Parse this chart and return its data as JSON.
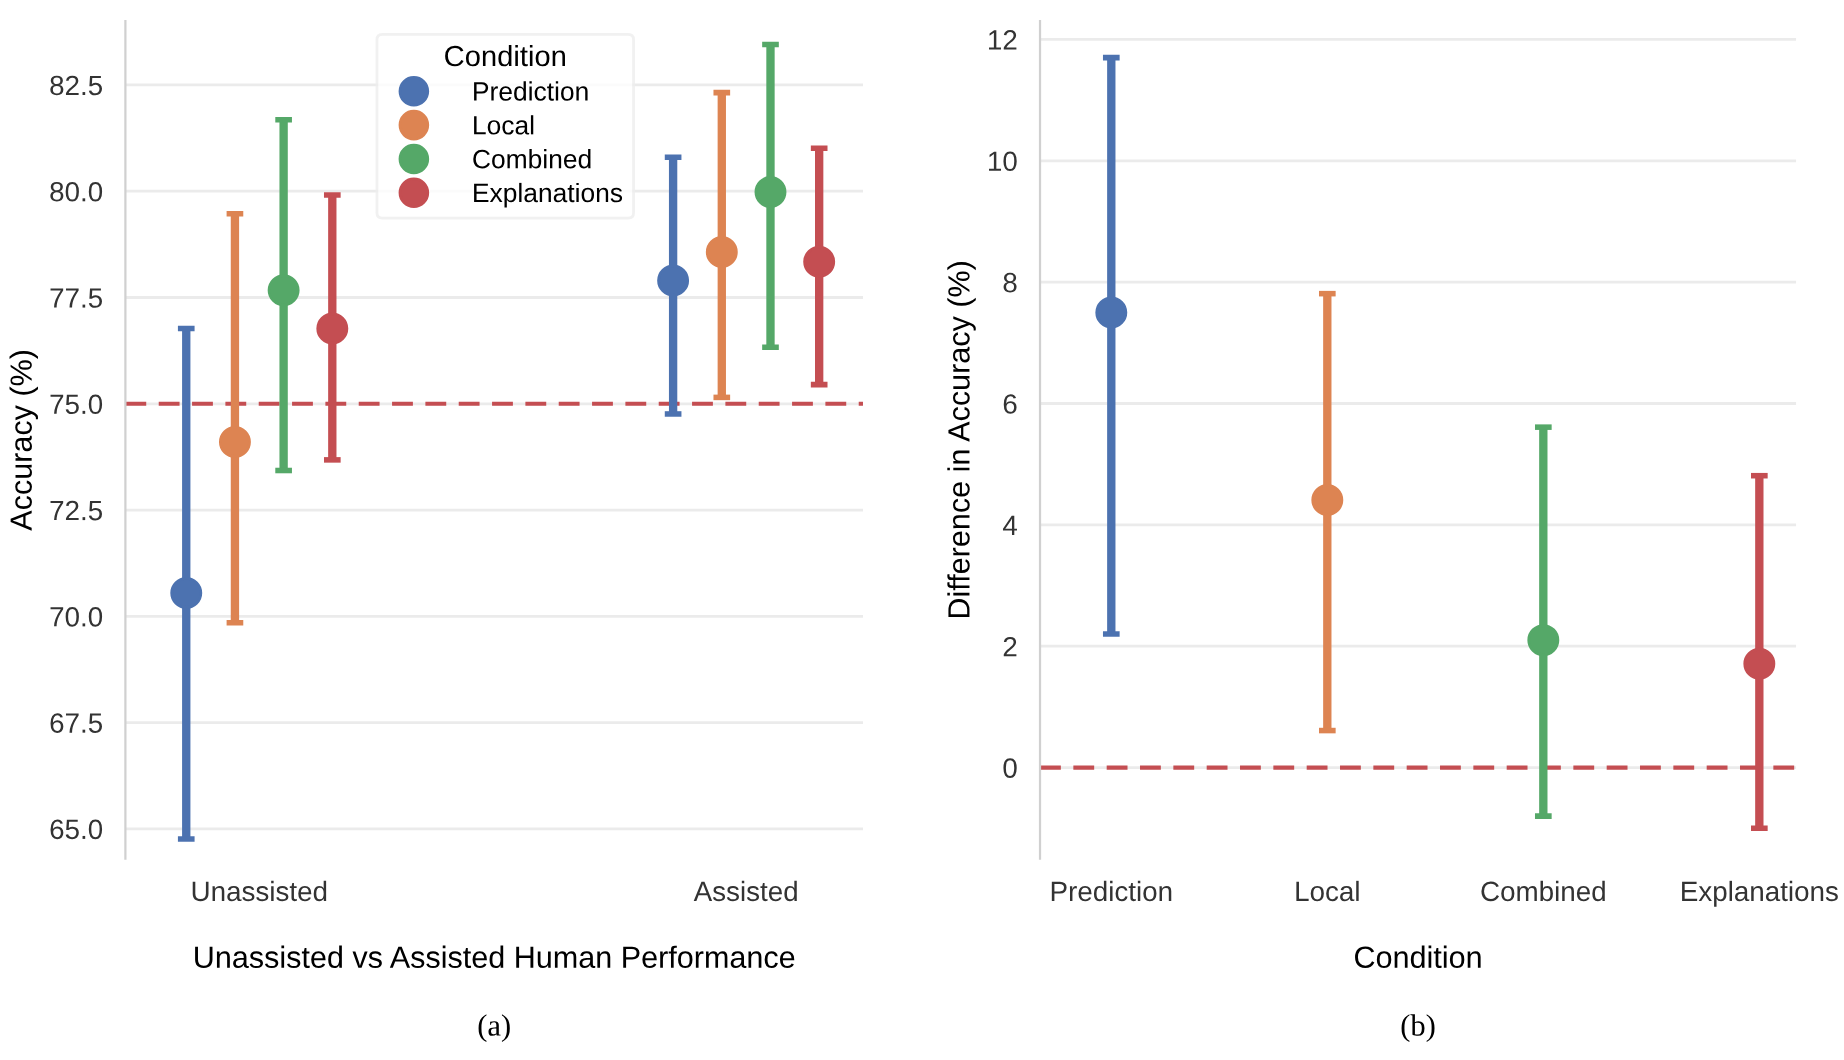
{
  "chart_data": [
    {
      "type": "scatter",
      "xlabel": "Unassisted vs Assisted Human Performance",
      "ylabel": "Accuracy (%)",
      "legend_title": "Condition",
      "legend": "top",
      "grid": "y",
      "marker": "circle",
      "categories": [
        "Unassisted",
        "Assisted"
      ],
      "ylim": [
        64.3,
        84
      ],
      "yticks": [
        {
          "value": 65,
          "label": "65.0"
        },
        {
          "value": 67.5,
          "label": "67.5"
        },
        {
          "value": 70,
          "label": "70.0"
        },
        {
          "value": 72.5,
          "label": "72.5"
        },
        {
          "value": 75,
          "label": "75.0"
        },
        {
          "value": 77.5,
          "label": "77.5"
        },
        {
          "value": 80,
          "label": "80.0"
        },
        {
          "value": 82.5,
          "label": "82.5"
        }
      ],
      "series": [
        {
          "name": "Prediction",
          "color": "#4c72b0",
          "values": [
            70.55,
            77.9
          ],
          "errors": [
            [
              64.76,
              76.77
            ],
            [
              74.76,
              80.8
            ]
          ]
        },
        {
          "name": "Local",
          "color": "#dd8452",
          "values": [
            74.1,
            78.57
          ],
          "errors": [
            [
              69.85,
              79.47
            ],
            [
              75.15,
              82.32
            ]
          ]
        },
        {
          "name": "Combined",
          "color": "#55a868",
          "values": [
            77.67,
            79.98
          ],
          "errors": [
            [
              73.43,
              81.68
            ],
            [
              76.33,
              83.45
            ]
          ]
        },
        {
          "name": "Explanations",
          "color": "#c44e52",
          "values": [
            76.77,
            78.34
          ],
          "errors": [
            [
              73.68,
              79.91
            ],
            [
              75.45,
              81.01
            ]
          ]
        }
      ],
      "ref_lines": [
        {
          "axis": "y",
          "value": 75,
          "color": "#c44e52",
          "line_style": "dashed"
        }
      ],
      "annotations": [
        "(a)"
      ]
    },
    {
      "type": "scatter",
      "xlabel": "Condition",
      "ylabel": "Difference in Accuracy (%)",
      "grid": "y",
      "marker": "circle",
      "categories": [
        "Prediction",
        "Local",
        "Combined",
        "Explanations"
      ],
      "ylim": [
        -1.5,
        12.3
      ],
      "yticks": [
        0,
        2,
        4,
        6,
        8,
        10,
        12
      ],
      "colors": [
        "#4c72b0",
        "#dd8452",
        "#55a868",
        "#c44e52"
      ],
      "values": [
        7.5,
        4.41,
        2.1,
        1.71
      ],
      "errors": [
        [
          2.2,
          11.7
        ],
        [
          0.61,
          7.81
        ],
        [
          -0.8,
          5.61
        ],
        [
          -1.0,
          4.81
        ]
      ],
      "ref_lines": [
        {
          "axis": "y",
          "value": 0,
          "color": "#c44e52",
          "line_style": "dashed"
        }
      ],
      "annotations": [
        "(b)"
      ]
    }
  ]
}
